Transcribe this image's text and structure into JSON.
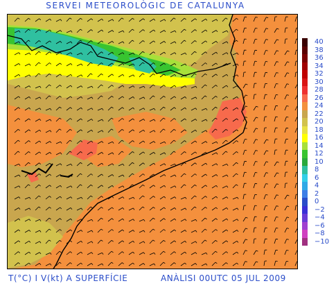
{
  "title": "SERVEI METEOROLÒGIC DE CATALUNYA",
  "footer_left": "T(°C) I V(kt) A SUPERFÍCIE",
  "footer_right": "ANÀLISI 00UTC 05 JUL 2009",
  "legend": [
    {
      "label": "40",
      "color": "#3a0000"
    },
    {
      "label": "38",
      "color": "#5a0000"
    },
    {
      "label": "36",
      "color": "#7a0000"
    },
    {
      "label": "34",
      "color": "#a00000"
    },
    {
      "label": "32",
      "color": "#c00000"
    },
    {
      "label": "30",
      "color": "#d91515"
    },
    {
      "label": "28",
      "color": "#ee3030"
    },
    {
      "label": "26",
      "color": "#f76a4c"
    },
    {
      "label": "24",
      "color": "#f4903d"
    },
    {
      "label": "22",
      "color": "#c9a64e"
    },
    {
      "label": "20",
      "color": "#d2c24d"
    },
    {
      "label": "18",
      "color": "#e8e045"
    },
    {
      "label": "16",
      "color": "#ffff00"
    },
    {
      "label": "14",
      "color": "#a8e03a"
    },
    {
      "label": "12",
      "color": "#38c430"
    },
    {
      "label": "10",
      "color": "#29a83b"
    },
    {
      "label": "8",
      "color": "#2fc0a0"
    },
    {
      "label": "6",
      "color": "#32cfe8"
    },
    {
      "label": "4",
      "color": "#2fa9e6"
    },
    {
      "label": "2",
      "color": "#3d7ee6"
    },
    {
      "label": "0",
      "color": "#2a4cc9"
    },
    {
      "label": "−2",
      "color": "#3a2fd6"
    },
    {
      "label": "−4",
      "color": "#6a3bd6"
    },
    {
      "label": "−6",
      "color": "#a040d0"
    },
    {
      "label": "−8",
      "color": "#d040c0"
    },
    {
      "label": "−10",
      "color": "#a03080"
    }
  ],
  "colors": {
    "sea": "#f4903d",
    "land_warm": "#c9a64e",
    "land_mid": "#d2c24d",
    "yellow": "#ffff00",
    "green_light": "#a8e03a",
    "green": "#38c430",
    "teal": "#2fc0a0",
    "red_hot": "#f76a4c"
  },
  "icons": {
    "wind_barb": "wind-barb-icon"
  }
}
